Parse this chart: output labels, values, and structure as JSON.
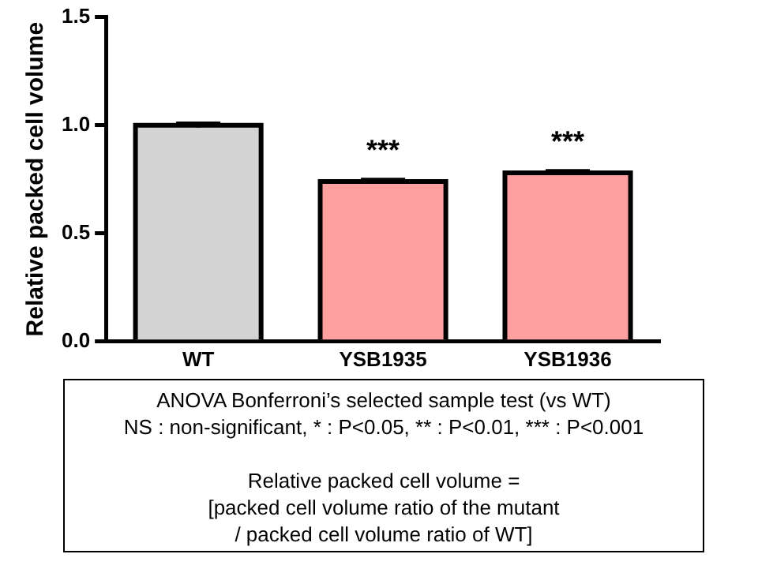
{
  "chart_data": {
    "type": "bar",
    "ylabel": "Relative packed cell volume",
    "categories": [
      "WT",
      "YSB1935",
      "YSB1936"
    ],
    "values": [
      1.0,
      0.74,
      0.78
    ],
    "errors": [
      0.01,
      0.01,
      0.01
    ],
    "colors": [
      "#d3d3d3",
      "#ffa0a0",
      "#ffa0a0"
    ],
    "ylim": [
      0,
      1.5
    ],
    "yticks": [
      {
        "value": 0,
        "label": "0.0"
      },
      {
        "value": 0.5,
        "label": "0.5"
      },
      {
        "value": 1,
        "label": "1.0"
      },
      {
        "value": 1.5,
        "label": "1.5"
      }
    ],
    "grid": false,
    "legend": false,
    "annotations": [
      {
        "text": "***",
        "x": "YSB1935",
        "y": 0.74
      },
      {
        "text": "***",
        "x": "YSB1936",
        "y": 0.78
      },
      "ANOVA Bonferroni’s selected sample test (vs WT)",
      "NS : non-significant, * : P<0.05, ** : P<0.01, *** : P<0.001",
      "Relative packed cell volume =",
      "[packed cell volume ratio of the mutant",
      "/ packed cell volume ratio of WT]"
    ]
  }
}
